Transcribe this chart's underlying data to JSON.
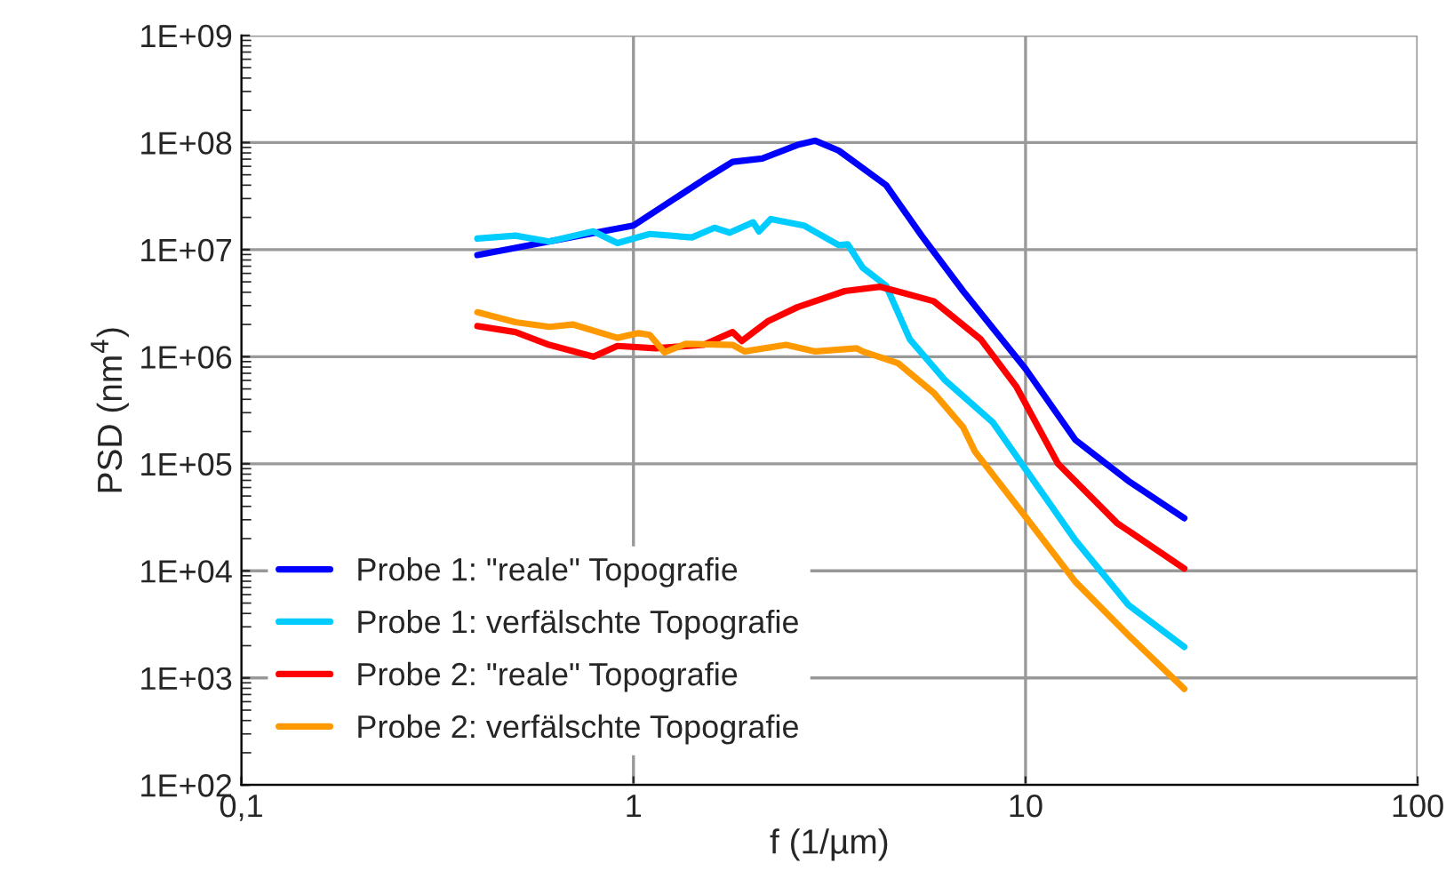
{
  "chart_data": {
    "type": "line",
    "xlabel": "f (1/µm)",
    "ylabel": "PSD (nm$^{4}$)",
    "log": "xy",
    "grid": true,
    "legend": "bottom left",
    "marker": "none",
    "line_style": "solid",
    "xlim": [
      0.1,
      100
    ],
    "xticks": [
      {
        "value": 0.1,
        "label": "0,1"
      },
      1,
      10,
      100
    ],
    "ylim": [
      100,
      1000000000
    ],
    "yticks": [
      {
        "value": 100,
        "label": "1E+02"
      },
      {
        "value": 1000,
        "label": "1E+03"
      },
      {
        "value": 10000,
        "label": "1E+04"
      },
      {
        "value": 100000,
        "label": "1E+05"
      },
      {
        "value": 1000000,
        "label": "1E+06"
      },
      {
        "value": 10000000,
        "label": "1E+07"
      },
      {
        "value": 100000000,
        "label": "1E+08"
      },
      {
        "value": 1000000000,
        "label": "1E+09"
      }
    ],
    "series": [
      {
        "name": "Probe 1: \"reale\" Topografie",
        "color": "#0000ff",
        "x": [
          0.4,
          1.0,
          1.51,
          1.79,
          2.13,
          2.62,
          2.91,
          3.34,
          4.41,
          5.43,
          6.93,
          10,
          13.4,
          18.3,
          25.4
        ],
        "values": [
          8900000,
          16800000,
          45000000,
          66000000,
          71000000,
          95000000,
          104000000,
          84000000,
          40000000,
          13500000,
          4100000,
          770000,
          167000,
          69000,
          31000
        ]
      },
      {
        "name": "Probe 1: verfälschte Topografie",
        "color": "#00ccff",
        "x": [
          0.4,
          0.5,
          0.61,
          0.79,
          0.91,
          1.1,
          1.41,
          1.61,
          1.76,
          2.02,
          2.09,
          2.24,
          2.72,
          3.34,
          3.52,
          3.84,
          4.41,
          5.07,
          6.24,
          8.24,
          10,
          13.4,
          18.3,
          25.4
        ],
        "values": [
          12700000,
          13500000,
          11900000,
          14800000,
          11500000,
          14000000,
          13000000,
          16000000,
          14400000,
          18000000,
          14800000,
          19300000,
          16800000,
          11000000,
          11200000,
          6800000,
          4600000,
          1450000,
          600000,
          245000,
          89000,
          19300,
          4800,
          1950
        ]
      },
      {
        "name": "Probe 2: \"reale\" Topografie",
        "color": "#ff0000",
        "x": [
          0.4,
          0.5,
          0.61,
          0.79,
          0.91,
          1.14,
          1.51,
          1.79,
          1.89,
          2.2,
          2.62,
          3.46,
          4.26,
          5.83,
          7.69,
          9.46,
          12.1,
          17.1,
          25.4
        ],
        "values": [
          1930000,
          1700000,
          1290000,
          1000000,
          1260000,
          1200000,
          1290000,
          1700000,
          1400000,
          2140000,
          2900000,
          4100000,
          4500000,
          3300000,
          1450000,
          530000,
          100000,
          28000,
          10500
        ]
      },
      {
        "name": "Probe 2: verfälschte Topografie",
        "color": "#ff9900",
        "x": [
          0.4,
          0.5,
          0.61,
          0.7,
          0.91,
          1.03,
          1.1,
          1.2,
          1.36,
          1.79,
          1.92,
          2.45,
          2.91,
          3.71,
          3.84,
          4.73,
          5.83,
          6.93,
          7.43,
          10,
          13.4,
          18.3,
          25.4
        ],
        "values": [
          2600000,
          2100000,
          1900000,
          2000000,
          1500000,
          1660000,
          1600000,
          1100000,
          1320000,
          1290000,
          1120000,
          1290000,
          1120000,
          1200000,
          1120000,
          870000,
          460000,
          220000,
          130000,
          32000,
          7900,
          2500,
          790
        ]
      }
    ]
  }
}
